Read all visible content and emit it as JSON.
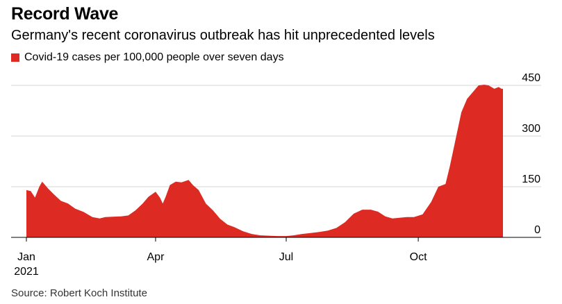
{
  "chart_data": {
    "type": "area",
    "title": "Record Wave",
    "subtitle": "Germany's recent coronavirus outbreak has hit unprecedented levels",
    "legend": [
      {
        "name": "Covid-19 cases per 100,000 people over seven days",
        "color": "#dd2a22"
      }
    ],
    "source": "Source: Robert Koch Institute",
    "ylim": [
      0,
      450
    ],
    "yticks": [
      0,
      150,
      300,
      450
    ],
    "grid": true,
    "xticks": [
      {
        "date": "2021-01-01",
        "label": "Jan",
        "sublabel": "2021"
      },
      {
        "date": "2021-04-01",
        "label": "Apr"
      },
      {
        "date": "2021-07-01",
        "label": "Jul"
      },
      {
        "date": "2021-10-01",
        "label": "Oct"
      }
    ],
    "series": [
      {
        "name": "Covid-19 cases per 100,000 people over seven days",
        "color": "#dd2a22",
        "x": [
          "2021-01-01",
          "2021-01-04",
          "2021-01-07",
          "2021-01-10",
          "2021-01-12",
          "2021-01-16",
          "2021-01-20",
          "2021-01-25",
          "2021-01-30",
          "2021-02-04",
          "2021-02-10",
          "2021-02-16",
          "2021-02-21",
          "2021-02-25",
          "2021-03-02",
          "2021-03-08",
          "2021-03-13",
          "2021-03-18",
          "2021-03-23",
          "2021-03-27",
          "2021-04-01",
          "2021-04-04",
          "2021-04-06",
          "2021-04-08",
          "2021-04-11",
          "2021-04-15",
          "2021-04-19",
          "2021-04-24",
          "2021-04-27",
          "2021-05-01",
          "2021-05-06",
          "2021-05-11",
          "2021-05-16",
          "2021-05-21",
          "2021-05-26",
          "2021-06-01",
          "2021-06-07",
          "2021-06-13",
          "2021-06-19",
          "2021-06-25",
          "2021-07-01",
          "2021-07-06",
          "2021-07-12",
          "2021-07-18",
          "2021-07-24",
          "2021-07-30",
          "2021-08-05",
          "2021-08-11",
          "2021-08-17",
          "2021-08-23",
          "2021-08-29",
          "2021-09-03",
          "2021-09-08",
          "2021-09-13",
          "2021-09-18",
          "2021-09-23",
          "2021-09-28",
          "2021-10-04",
          "2021-10-10",
          "2021-10-15",
          "2021-10-20",
          "2021-10-23",
          "2021-10-27",
          "2021-10-31",
          "2021-11-04",
          "2021-11-08",
          "2021-11-12",
          "2021-11-16",
          "2021-11-19",
          "2021-11-23",
          "2021-11-26",
          "2021-11-28",
          "2021-11-29"
        ],
        "values": [
          140,
          137,
          118,
          150,
          165,
          145,
          128,
          108,
          100,
          85,
          75,
          60,
          56,
          60,
          61,
          62,
          65,
          80,
          100,
          120,
          135,
          118,
          100,
          120,
          155,
          165,
          163,
          170,
          155,
          140,
          100,
          80,
          55,
          38,
          30,
          18,
          10,
          6,
          5,
          4,
          4,
          6,
          10,
          13,
          16,
          20,
          28,
          45,
          70,
          82,
          82,
          76,
          62,
          56,
          58,
          60,
          60,
          68,
          105,
          150,
          158,
          210,
          290,
          370,
          410,
          430,
          450,
          452,
          450,
          440,
          445,
          440,
          440
        ]
      }
    ]
  }
}
